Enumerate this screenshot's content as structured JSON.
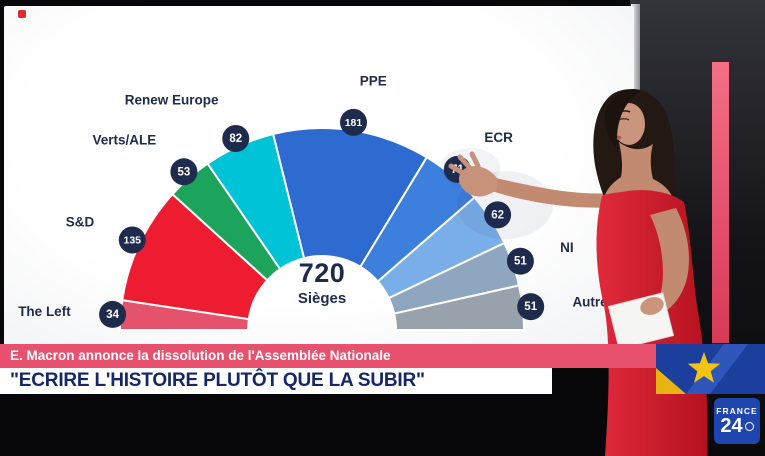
{
  "channel": {
    "logo_line1": "FRANCE",
    "logo_line2": "24"
  },
  "banner": {
    "headline": "E. Macron annonce la dissolution de l'Assemblée Nationale",
    "quote": "\"ECRIRE L'HISTOIRE PLUTÔT QUE LA SUBIR\""
  },
  "colors": {
    "banner_pink": "#e8516e",
    "banner_text_navy": "#16266b",
    "badge_navy": "#1e2b4d",
    "logo_blue": "#1e46ae",
    "studio_strip_pink": "#e9556f"
  },
  "chart_data": {
    "type": "hemicycle",
    "title": "720",
    "subtitle": "Sièges",
    "total_seats": 720,
    "badge_color": "#1e2b4d",
    "label_color": "#1e2b4d",
    "segments": [
      {
        "label": "The Left",
        "seats": 34,
        "color": "#e5526b"
      },
      {
        "label": "S&D",
        "seats": 135,
        "color": "#ee1c30"
      },
      {
        "label": "Verts/ALE",
        "seats": 53,
        "color": "#1ca45c"
      },
      {
        "label": "Renew Europe",
        "seats": 82,
        "color": "#00c3d7"
      },
      {
        "label": "PPE",
        "seats": 181,
        "color": "#2e6bd0"
      },
      {
        "label": "ECR",
        "seats": 71,
        "color": "#3d7fdd"
      },
      {
        "label": "",
        "seats": 62,
        "color": "#7aaee9"
      },
      {
        "label": "NI",
        "seats": 51,
        "color": "#8fa6c0"
      },
      {
        "label": "Autres",
        "seats": 51,
        "color": "#97a2ad"
      }
    ]
  }
}
